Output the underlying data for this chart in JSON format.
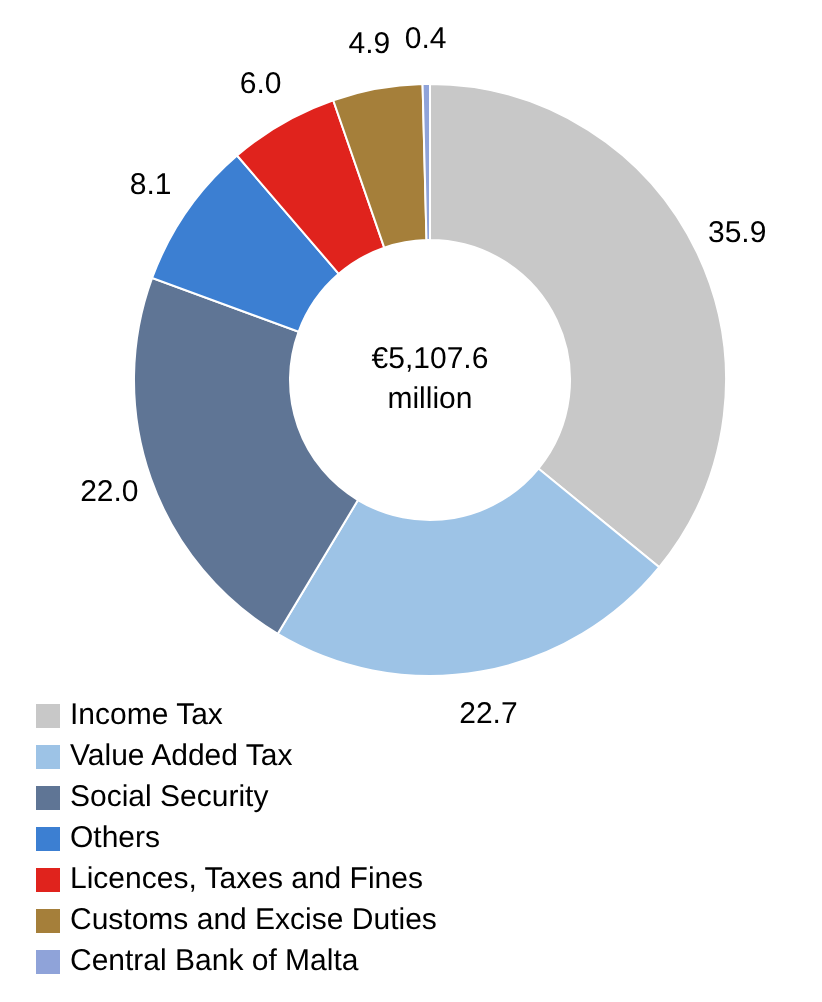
{
  "chart_data": {
    "type": "donut",
    "categories": [
      "Income Tax",
      "Value Added Tax",
      "Social Security",
      "Others",
      "Licences, Taxes and Fines",
      "Customs and Excise Duties",
      "Central Bank of Malta"
    ],
    "values": [
      35.9,
      22.7,
      22.0,
      8.1,
      6.0,
      4.9,
      0.4
    ],
    "value_labels": [
      "35.9",
      "22.7",
      "22.0",
      "8.1",
      "6.0",
      "4.9",
      "0.4"
    ],
    "colors": [
      "#c8c8c8",
      "#9dc3e6",
      "#5f7595",
      "#3c7fd2",
      "#e0231d",
      "#a57f3a",
      "#8fa3d9"
    ],
    "annotations": [
      "€5,107.6 million"
    ],
    "legend": "bottom"
  }
}
